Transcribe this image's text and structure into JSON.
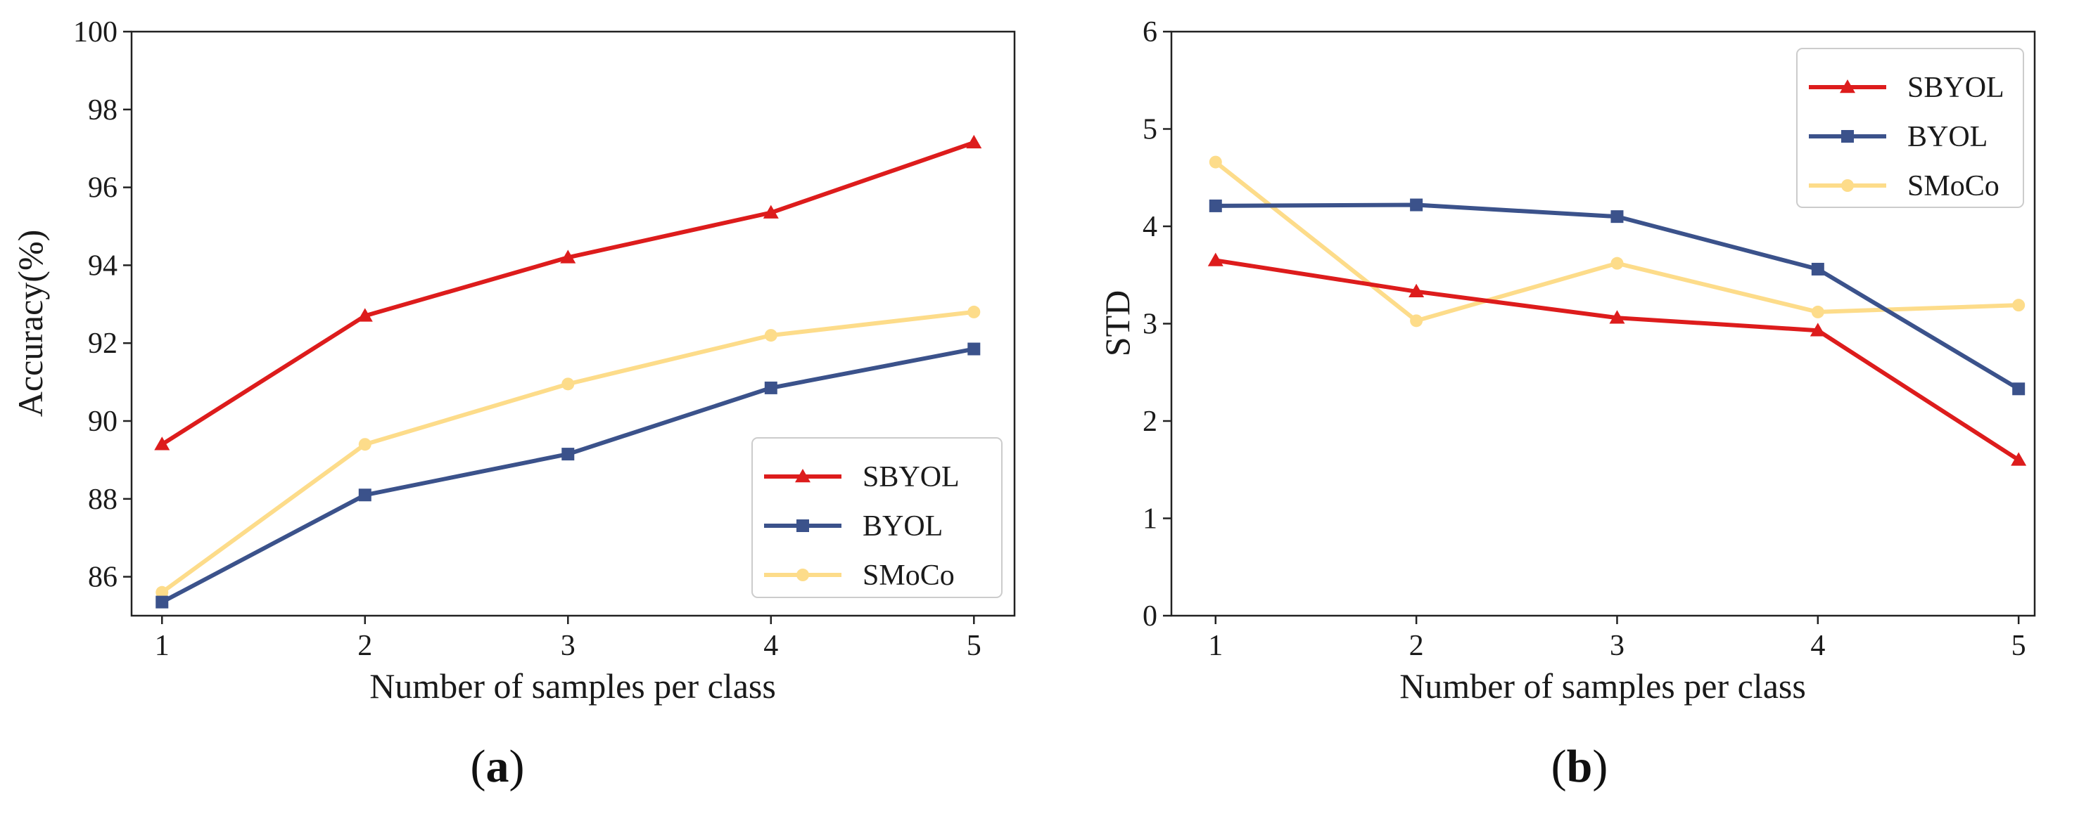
{
  "chart_data": [
    {
      "type": "line",
      "panel_label": {
        "open": "(",
        "letter": "a",
        "close": ")"
      },
      "xlabel": "Number of samples per class",
      "ylabel": "Accuracy(%)",
      "x": [
        1,
        2,
        3,
        4,
        5
      ],
      "xlim": [
        0.85,
        5.2
      ],
      "ylim": [
        85,
        100
      ],
      "xticks": [
        "1",
        "2",
        "3",
        "4",
        "5"
      ],
      "yticks": [
        "86",
        "88",
        "90",
        "92",
        "94",
        "96",
        "98",
        "100"
      ],
      "ytick_values": [
        86,
        88,
        90,
        92,
        94,
        96,
        98,
        100
      ],
      "legend_position": "lower-right",
      "series": [
        {
          "name": "SBYOL",
          "color": "#dd1c1c",
          "marker": "triangle",
          "values": [
            89.4,
            92.7,
            94.2,
            95.35,
            97.15
          ]
        },
        {
          "name": "BYOL",
          "color": "#3b528b",
          "marker": "square",
          "values": [
            85.35,
            88.1,
            89.15,
            90.85,
            91.85
          ]
        },
        {
          "name": "SMoCo",
          "color": "#fddc8a",
          "marker": "circle",
          "values": [
            85.6,
            89.4,
            90.95,
            92.2,
            92.8
          ]
        }
      ]
    },
    {
      "type": "line",
      "panel_label": {
        "open": "(",
        "letter": "b",
        "close": ")"
      },
      "xlabel": "Number of samples per class",
      "ylabel": "STD",
      "x": [
        1,
        2,
        3,
        4,
        5
      ],
      "xlim": [
        0.78,
        5.08
      ],
      "ylim": [
        0,
        6
      ],
      "xticks": [
        "1",
        "2",
        "3",
        "4",
        "5"
      ],
      "yticks": [
        "0",
        "1",
        "2",
        "3",
        "4",
        "5",
        "6"
      ],
      "ytick_values": [
        0,
        1,
        2,
        3,
        4,
        5,
        6
      ],
      "legend_position": "upper-right",
      "series": [
        {
          "name": "SBYOL",
          "color": "#dd1c1c",
          "marker": "triangle",
          "values": [
            3.65,
            3.33,
            3.06,
            2.93,
            1.6
          ]
        },
        {
          "name": "BYOL",
          "color": "#3b528b",
          "marker": "square",
          "values": [
            4.21,
            4.22,
            4.1,
            3.56,
            2.33
          ]
        },
        {
          "name": "SMoCo",
          "color": "#fddc8a",
          "marker": "circle",
          "values": [
            4.66,
            3.03,
            3.62,
            3.12,
            3.19
          ]
        }
      ]
    }
  ]
}
